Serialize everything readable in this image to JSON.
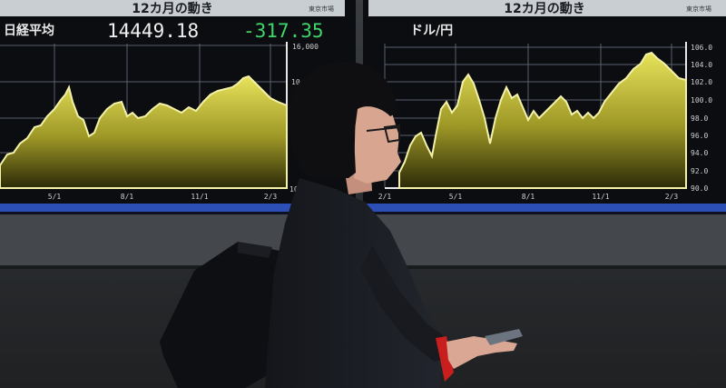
{
  "left_board": {
    "header": "12カ月の動き",
    "header_tag": "東京市場",
    "title": "日経平均",
    "value": "14449.18",
    "change": "-317.35",
    "y_top": "16,000",
    "y_mid": "10",
    "x_ticks": [
      "5/1",
      "8/1",
      "11/1",
      "2/3"
    ]
  },
  "right_board": {
    "header": "12カ月の動き",
    "header_tag": "東京市場",
    "title": "ドル/円",
    "y_ticks": [
      "106.0",
      "104.0",
      "102.0",
      "100.0",
      "98.0",
      "96.0",
      "94.0",
      "92.0",
      "90.0"
    ],
    "x_ticks": [
      "2/1",
      "5/1",
      "8/1",
      "11/1",
      "2/3"
    ]
  },
  "colors": {
    "screen_bg": "#0b0d10",
    "chart_fill": "#c8c23a",
    "change_green": "#3fd66a",
    "wall": "#2b2d30"
  }
}
